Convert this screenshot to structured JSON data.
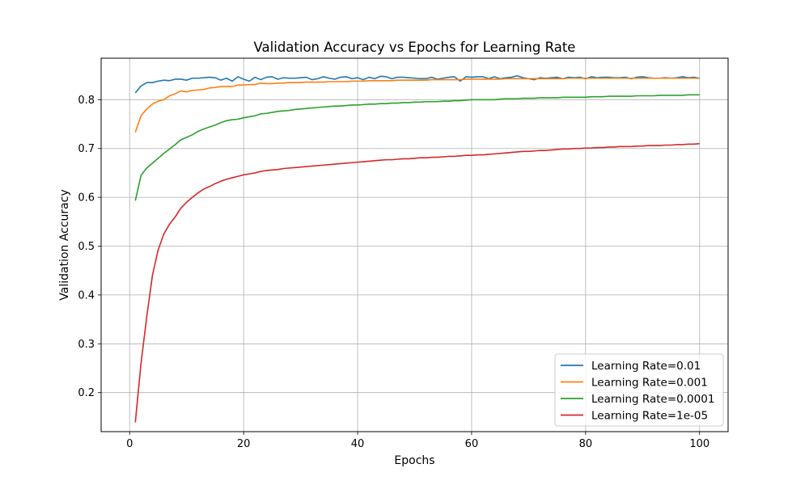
{
  "chart_data": {
    "type": "line",
    "title": "Validation Accuracy vs Epochs for Learning Rate",
    "xlabel": "Epochs",
    "ylabel": "Validation Accuracy",
    "xlim": [
      -5,
      105
    ],
    "ylim": [
      0.12,
      0.885
    ],
    "xticks": [
      0,
      20,
      40,
      60,
      80,
      100
    ],
    "xtick_labels": [
      "0",
      "20",
      "40",
      "60",
      "80",
      "100"
    ],
    "yticks": [
      0.2,
      0.3,
      0.4,
      0.5,
      0.6,
      0.7,
      0.8
    ],
    "ytick_labels": [
      "0.2",
      "0.3",
      "0.4",
      "0.5",
      "0.6",
      "0.7",
      "0.8"
    ],
    "grid": true,
    "legend_position": "lower right",
    "x": [
      1,
      2,
      3,
      4,
      5,
      6,
      7,
      8,
      9,
      10,
      11,
      12,
      13,
      14,
      15,
      16,
      17,
      18,
      19,
      20,
      21,
      22,
      23,
      24,
      25,
      26,
      27,
      28,
      29,
      30,
      31,
      32,
      33,
      34,
      35,
      36,
      37,
      38,
      39,
      40,
      41,
      42,
      43,
      44,
      45,
      46,
      47,
      48,
      49,
      50,
      51,
      52,
      53,
      54,
      55,
      56,
      57,
      58,
      59,
      60,
      61,
      62,
      63,
      64,
      65,
      66,
      67,
      68,
      69,
      70,
      71,
      72,
      73,
      74,
      75,
      76,
      77,
      78,
      79,
      80,
      81,
      82,
      83,
      84,
      85,
      86,
      87,
      88,
      89,
      90,
      91,
      92,
      93,
      94,
      95,
      96,
      97,
      98,
      99,
      100
    ],
    "series": [
      {
        "name": "Learning Rate=0.01",
        "color": "#1f77b4",
        "values": [
          0.814,
          0.828,
          0.835,
          0.835,
          0.838,
          0.84,
          0.839,
          0.842,
          0.842,
          0.84,
          0.844,
          0.844,
          0.845,
          0.846,
          0.845,
          0.84,
          0.844,
          0.838,
          0.847,
          0.842,
          0.838,
          0.846,
          0.841,
          0.846,
          0.847,
          0.842,
          0.845,
          0.844,
          0.844,
          0.845,
          0.846,
          0.841,
          0.843,
          0.847,
          0.844,
          0.842,
          0.846,
          0.847,
          0.843,
          0.845,
          0.841,
          0.846,
          0.843,
          0.848,
          0.847,
          0.843,
          0.846,
          0.846,
          0.845,
          0.844,
          0.843,
          0.843,
          0.846,
          0.842,
          0.844,
          0.846,
          0.847,
          0.838,
          0.847,
          0.846,
          0.847,
          0.847,
          0.843,
          0.847,
          0.843,
          0.845,
          0.846,
          0.849,
          0.845,
          0.843,
          0.841,
          0.845,
          0.844,
          0.845,
          0.846,
          0.843,
          0.846,
          0.845,
          0.846,
          0.843,
          0.847,
          0.845,
          0.846,
          0.846,
          0.845,
          0.845,
          0.846,
          0.843,
          0.846,
          0.847,
          0.845,
          0.844,
          0.844,
          0.845,
          0.844,
          0.845,
          0.847,
          0.845,
          0.846,
          0.844
        ]
      },
      {
        "name": "Learning Rate=0.001",
        "color": "#ff7f0e",
        "values": [
          0.733,
          0.767,
          0.781,
          0.791,
          0.797,
          0.8,
          0.808,
          0.812,
          0.818,
          0.816,
          0.819,
          0.82,
          0.821,
          0.824,
          0.825,
          0.827,
          0.827,
          0.827,
          0.83,
          0.83,
          0.831,
          0.831,
          0.834,
          0.833,
          0.833,
          0.834,
          0.834,
          0.835,
          0.835,
          0.835,
          0.836,
          0.836,
          0.836,
          0.836,
          0.837,
          0.837,
          0.837,
          0.837,
          0.838,
          0.838,
          0.838,
          0.839,
          0.839,
          0.839,
          0.839,
          0.839,
          0.84,
          0.84,
          0.84,
          0.84,
          0.84,
          0.84,
          0.841,
          0.841,
          0.841,
          0.841,
          0.841,
          0.841,
          0.842,
          0.842,
          0.842,
          0.842,
          0.842,
          0.842,
          0.842,
          0.843,
          0.843,
          0.843,
          0.843,
          0.843,
          0.843,
          0.843,
          0.843,
          0.843,
          0.843,
          0.843,
          0.844,
          0.844,
          0.844,
          0.844,
          0.844,
          0.844,
          0.844,
          0.844,
          0.844,
          0.844,
          0.844,
          0.844,
          0.844,
          0.844,
          0.844,
          0.844,
          0.844,
          0.844,
          0.844,
          0.844,
          0.844,
          0.844,
          0.844,
          0.844
        ]
      },
      {
        "name": "Learning Rate=0.0001",
        "color": "#2ca02c",
        "values": [
          0.593,
          0.645,
          0.66,
          0.67,
          0.68,
          0.69,
          0.699,
          0.708,
          0.718,
          0.723,
          0.728,
          0.735,
          0.74,
          0.744,
          0.748,
          0.753,
          0.757,
          0.759,
          0.76,
          0.763,
          0.765,
          0.767,
          0.771,
          0.772,
          0.774,
          0.776,
          0.777,
          0.778,
          0.78,
          0.781,
          0.782,
          0.783,
          0.784,
          0.785,
          0.786,
          0.787,
          0.787,
          0.788,
          0.789,
          0.789,
          0.79,
          0.791,
          0.791,
          0.792,
          0.792,
          0.793,
          0.793,
          0.794,
          0.794,
          0.795,
          0.795,
          0.796,
          0.796,
          0.796,
          0.797,
          0.797,
          0.798,
          0.798,
          0.799,
          0.8,
          0.8,
          0.8,
          0.8,
          0.8,
          0.801,
          0.802,
          0.802,
          0.802,
          0.803,
          0.803,
          0.803,
          0.804,
          0.804,
          0.804,
          0.804,
          0.805,
          0.805,
          0.805,
          0.805,
          0.805,
          0.806,
          0.806,
          0.806,
          0.807,
          0.807,
          0.807,
          0.807,
          0.807,
          0.808,
          0.808,
          0.808,
          0.808,
          0.809,
          0.809,
          0.809,
          0.809,
          0.809,
          0.81,
          0.81,
          0.81
        ]
      },
      {
        "name": "Learning Rate=1e-05",
        "color": "#d62728",
        "values": [
          0.139,
          0.26,
          0.355,
          0.44,
          0.492,
          0.525,
          0.545,
          0.56,
          0.578,
          0.59,
          0.6,
          0.609,
          0.617,
          0.622,
          0.628,
          0.633,
          0.637,
          0.64,
          0.643,
          0.646,
          0.648,
          0.65,
          0.653,
          0.655,
          0.656,
          0.657,
          0.659,
          0.66,
          0.661,
          0.662,
          0.663,
          0.664,
          0.665,
          0.666,
          0.667,
          0.668,
          0.669,
          0.67,
          0.671,
          0.672,
          0.673,
          0.674,
          0.675,
          0.676,
          0.677,
          0.677,
          0.678,
          0.679,
          0.679,
          0.68,
          0.681,
          0.681,
          0.682,
          0.682,
          0.683,
          0.684,
          0.684,
          0.685,
          0.686,
          0.686,
          0.687,
          0.687,
          0.688,
          0.689,
          0.69,
          0.691,
          0.692,
          0.693,
          0.694,
          0.694,
          0.695,
          0.696,
          0.696,
          0.697,
          0.698,
          0.699,
          0.699,
          0.7,
          0.7,
          0.701,
          0.701,
          0.702,
          0.702,
          0.703,
          0.703,
          0.704,
          0.704,
          0.704,
          0.705,
          0.705,
          0.706,
          0.706,
          0.706,
          0.707,
          0.707,
          0.708,
          0.708,
          0.709,
          0.709,
          0.71
        ]
      }
    ]
  }
}
